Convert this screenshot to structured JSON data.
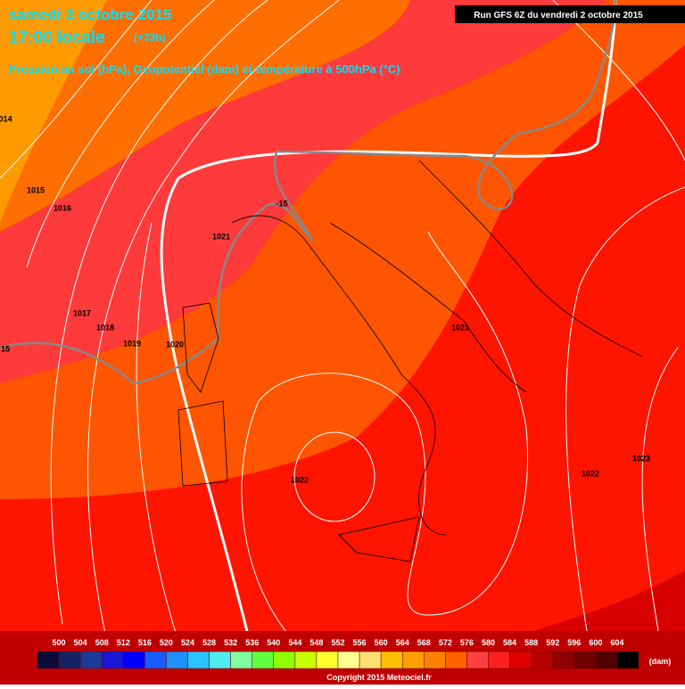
{
  "header": {
    "date": "samedi 3 octobre 2015",
    "time": "17:00 locale",
    "offset": "(+33h)",
    "subtitle": "Pression au sol (hPa), Geopotentiel (dam) et température à 500hPa (°C)"
  },
  "run": "Run GFS 6Z du vendredi 2 octobre 2015",
  "isobar_labels": [
    "014",
    "1015",
    "1016",
    "1017",
    "1018",
    "1019",
    "1020",
    "1021",
    "1021",
    "1022",
    "1022",
    "1023",
    "-15",
    "15"
  ],
  "legend": {
    "labels": [
      "500",
      "504",
      "508",
      "512",
      "516",
      "520",
      "524",
      "528",
      "532",
      "536",
      "540",
      "544",
      "548",
      "552",
      "556",
      "560",
      "564",
      "568",
      "572",
      "576",
      "580",
      "584",
      "588",
      "592",
      "596",
      "600",
      "604"
    ],
    "colors": [
      "#0c0c3a",
      "#142464",
      "#1c3a9c",
      "#1818d8",
      "#0000ff",
      "#1a5cff",
      "#1e90ff",
      "#28c4ff",
      "#50ecf0",
      "#80ffa0",
      "#60ff40",
      "#90ff00",
      "#c8ff00",
      "#ffff30",
      "#ffff90",
      "#ffe070",
      "#ffc000",
      "#ffa000",
      "#ff8000",
      "#ff6000",
      "#ff4040",
      "#ff2020",
      "#e00000",
      "#b80000",
      "#900000",
      "#700000",
      "#500000",
      "#000000"
    ],
    "unit": "(dam)"
  },
  "copyright": "Copyright 2015 Meteociel.fr"
}
